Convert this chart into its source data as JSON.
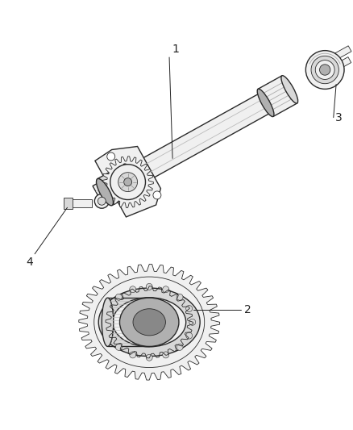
{
  "background_color": "#ffffff",
  "line_color": "#2a2a2a",
  "figsize": [
    4.38,
    5.33
  ],
  "dpi": 100,
  "face_light": "#f0f0f0",
  "face_mid": "#d8d8d8",
  "face_dark": "#b0b0b0",
  "face_darkest": "#888888",
  "callout_fontsize": 10,
  "callout_color": "#222222",
  "lw_main": 1.0,
  "lw_thin": 0.6,
  "lw_thick": 1.4
}
